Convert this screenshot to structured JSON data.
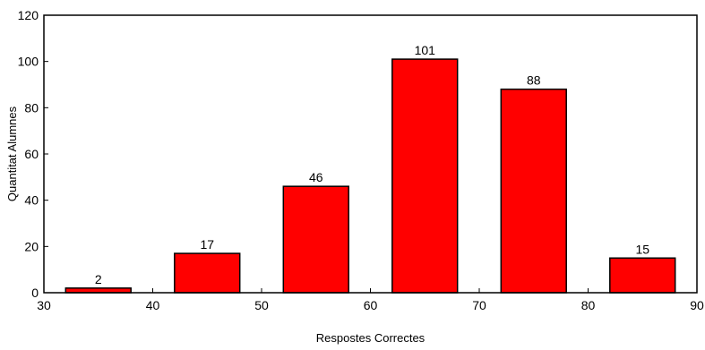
{
  "chart_data": {
    "type": "bar",
    "title": "",
    "xlabel": "Respostes Correctes",
    "ylabel": "Quantitat Alumnes",
    "xlim": [
      30,
      90
    ],
    "ylim": [
      0,
      120
    ],
    "x_ticks": [
      30,
      40,
      50,
      60,
      70,
      80,
      90
    ],
    "y_ticks": [
      0,
      20,
      40,
      60,
      80,
      100,
      120
    ],
    "bins": [
      {
        "from": 32,
        "to": 38,
        "value": 2,
        "label": "2"
      },
      {
        "from": 42,
        "to": 48,
        "value": 17,
        "label": "17"
      },
      {
        "from": 52,
        "to": 58,
        "value": 46,
        "label": "46"
      },
      {
        "from": 62,
        "to": 68,
        "value": 101,
        "label": "101"
      },
      {
        "from": 72,
        "to": 78,
        "value": 88,
        "label": "88"
      },
      {
        "from": 82,
        "to": 88,
        "value": 15,
        "label": "15"
      }
    ],
    "bar_color": "#ff0000",
    "grid": false,
    "legend": "none"
  }
}
